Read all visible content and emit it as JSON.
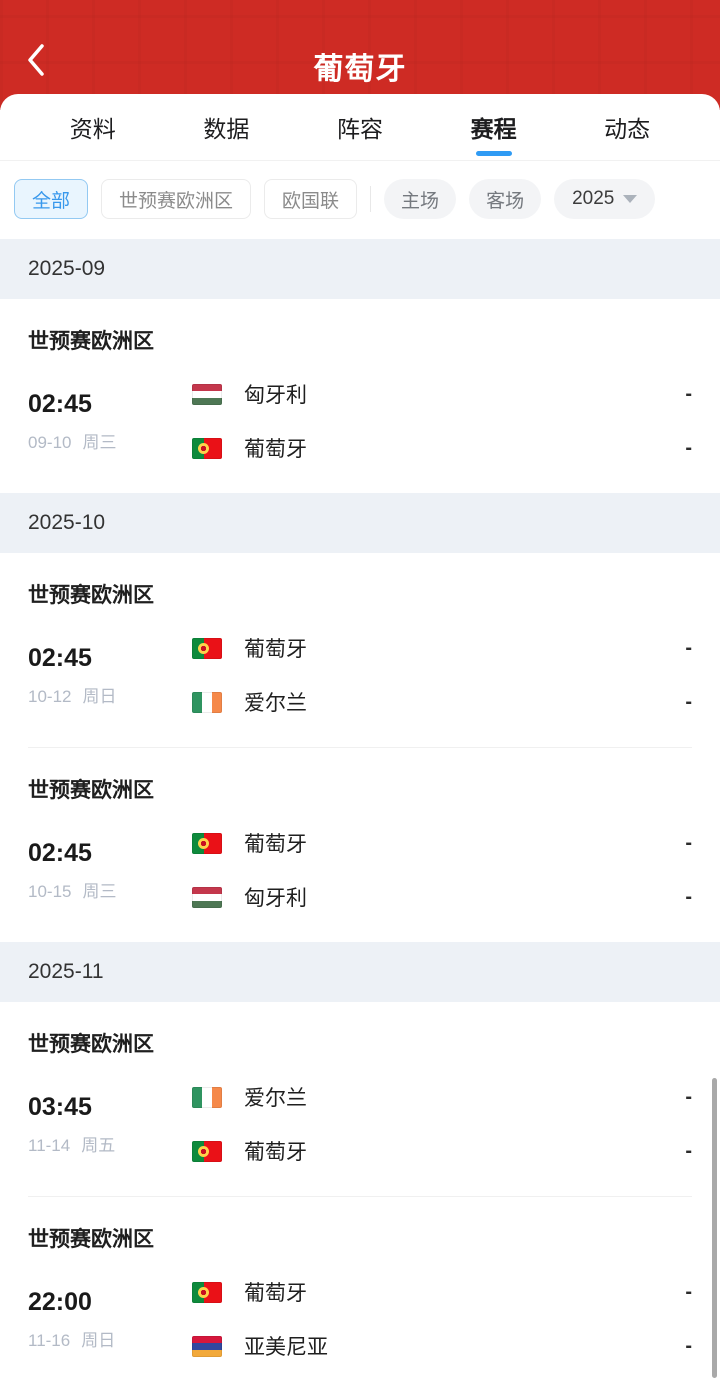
{
  "header": {
    "title": "葡萄牙"
  },
  "tabs": [
    {
      "key": "profile",
      "label": "资料",
      "active": false
    },
    {
      "key": "stats",
      "label": "数据",
      "active": false
    },
    {
      "key": "squad",
      "label": "阵容",
      "active": false
    },
    {
      "key": "schedule",
      "label": "赛程",
      "active": true
    },
    {
      "key": "news",
      "label": "动态",
      "active": false
    }
  ],
  "filters": {
    "competition_chips": [
      {
        "key": "all",
        "label": "全部",
        "selected": true
      },
      {
        "key": "wcq-europe",
        "label": "世预赛欧洲区",
        "selected": false
      },
      {
        "key": "nations-league",
        "label": "欧国联",
        "selected": false
      }
    ],
    "venue_chips": [
      {
        "key": "home",
        "label": "主场"
      },
      {
        "key": "away",
        "label": "客场"
      }
    ],
    "year_selector": {
      "label": "2025"
    }
  },
  "colors": {
    "header_bg": "#CE2B24",
    "accent_blue": "#2F9BF4",
    "selected_chip_bg": "#E9F5FE",
    "selected_chip_border": "#93C9F2",
    "selected_chip_text": "#3898EC",
    "month_band_bg": "#EDF1F6"
  },
  "sections": [
    {
      "month": "2025-09",
      "matches": [
        {
          "competition": "世预赛欧洲区",
          "time": "02:45",
          "date": "09-10",
          "weekday": "周三",
          "teams": [
            {
              "name": "匈牙利",
              "flag": "hungary",
              "score": "-"
            },
            {
              "name": "葡萄牙",
              "flag": "portugal",
              "score": "-"
            }
          ]
        }
      ]
    },
    {
      "month": "2025-10",
      "matches": [
        {
          "competition": "世预赛欧洲区",
          "time": "02:45",
          "date": "10-12",
          "weekday": "周日",
          "teams": [
            {
              "name": "葡萄牙",
              "flag": "portugal",
              "score": "-"
            },
            {
              "name": "爱尔兰",
              "flag": "ireland",
              "score": "-"
            }
          ]
        },
        {
          "competition": "世预赛欧洲区",
          "time": "02:45",
          "date": "10-15",
          "weekday": "周三",
          "teams": [
            {
              "name": "葡萄牙",
              "flag": "portugal",
              "score": "-"
            },
            {
              "name": "匈牙利",
              "flag": "hungary",
              "score": "-"
            }
          ]
        }
      ]
    },
    {
      "month": "2025-11",
      "matches": [
        {
          "competition": "世预赛欧洲区",
          "time": "03:45",
          "date": "11-14",
          "weekday": "周五",
          "teams": [
            {
              "name": "爱尔兰",
              "flag": "ireland",
              "score": "-"
            },
            {
              "name": "葡萄牙",
              "flag": "portugal",
              "score": "-"
            }
          ]
        },
        {
          "competition": "世预赛欧洲区",
          "time": "22:00",
          "date": "11-16",
          "weekday": "周日",
          "teams": [
            {
              "name": "葡萄牙",
              "flag": "portugal",
              "score": "-"
            },
            {
              "name": "亚美尼亚",
              "flag": "armenia",
              "score": "-"
            }
          ]
        }
      ]
    }
  ]
}
